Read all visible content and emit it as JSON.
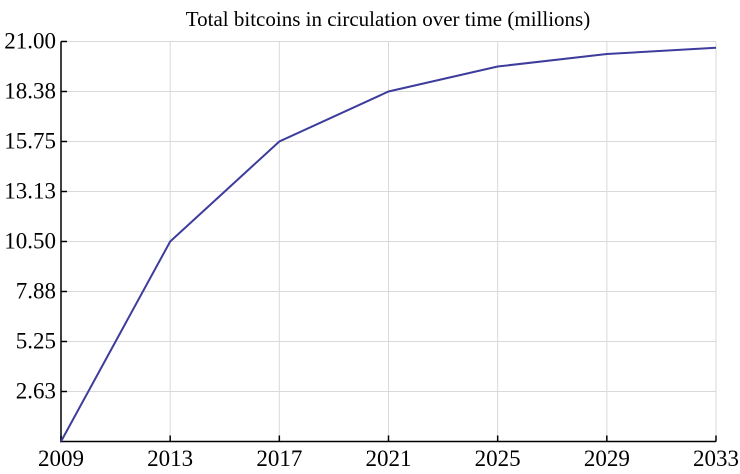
{
  "chart_data": {
    "type": "line",
    "title": "Total bitcoins in circulation over time (millions)",
    "xlabel": "",
    "ylabel": "",
    "xlim": [
      2009,
      2033
    ],
    "ylim": [
      0,
      21
    ],
    "grid": "both",
    "legend": "none",
    "x": [
      2009,
      2013,
      2017,
      2021,
      2025,
      2029,
      2033
    ],
    "series": [
      {
        "name": "total-bitcoins-in-circulation-millions",
        "values": [
          0,
          10.5,
          15.75,
          18.375,
          19.6875,
          20.34375,
          20.671875
        ]
      }
    ],
    "x_ticks": [
      {
        "value": 2009,
        "label": "2009"
      },
      {
        "value": 2013,
        "label": "2013"
      },
      {
        "value": 2017,
        "label": "2017"
      },
      {
        "value": 2021,
        "label": "2021"
      },
      {
        "value": 2025,
        "label": "2025"
      },
      {
        "value": 2029,
        "label": "2029"
      },
      {
        "value": 2033,
        "label": "2033"
      }
    ],
    "y_ticks": [
      {
        "value": 2.625,
        "label": "2.63"
      },
      {
        "value": 5.25,
        "label": "5.25"
      },
      {
        "value": 7.875,
        "label": "7.88"
      },
      {
        "value": 10.5,
        "label": "10.50"
      },
      {
        "value": 13.125,
        "label": "13.13"
      },
      {
        "value": 15.75,
        "label": "15.75"
      },
      {
        "value": 18.375,
        "label": "18.38"
      },
      {
        "value": 21,
        "label": "21.00"
      }
    ],
    "colors": {
      "line": "#3E3C9C",
      "grid": "#D9D9D9",
      "axis": "#000000",
      "text": "#000000",
      "background": "#FFFFFF"
    }
  }
}
